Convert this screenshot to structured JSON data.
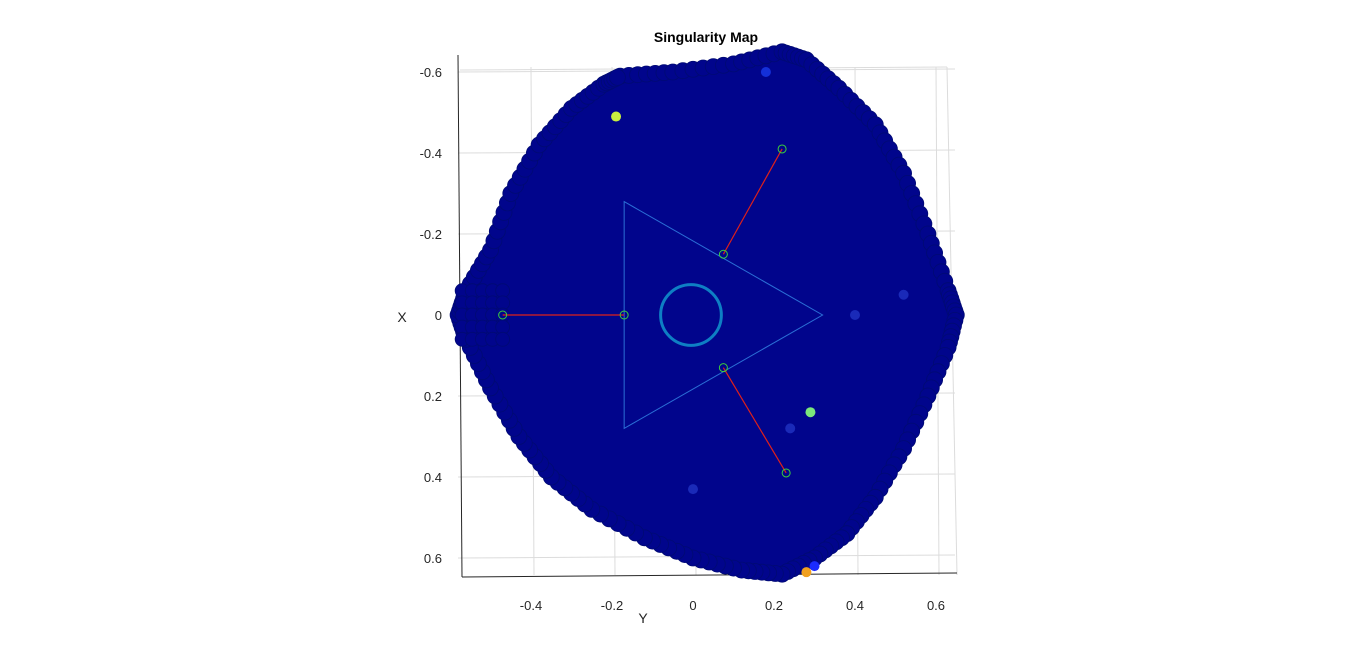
{
  "chart_data": {
    "type": "scatter",
    "title": "Singularity Map",
    "xlabel": "Y",
    "ylabel": "X",
    "xlim": [
      -0.58,
      0.65
    ],
    "ylim": [
      -0.65,
      0.64
    ],
    "y_reversed": true,
    "xticks": [
      -0.4,
      -0.2,
      0,
      0.2,
      0.4,
      0.6
    ],
    "xtick_labels": [
      "-0.4",
      "-0.2",
      "0",
      "0.2",
      "0.4",
      "0.6"
    ],
    "yticks": [
      -0.6,
      -0.4,
      -0.2,
      0,
      0.2,
      0.4,
      0.6
    ],
    "ytick_labels": [
      "-0.6",
      "-0.4",
      "-0.2",
      "0",
      "0.2",
      "0.4",
      "0.6"
    ],
    "grid": true,
    "colors": {
      "workspace_fill": "#01058c",
      "workspace_edge": "#000a73",
      "platform_line": "#2b6fd6",
      "center_circle": "#0e7fc4",
      "leg_line": "#e0201a",
      "joint_marker": "#3ccf3c"
    },
    "workspace_boundary": [
      [
        -0.18,
        -0.59
      ],
      [
        -0.05,
        -0.6
      ],
      [
        0.1,
        -0.62
      ],
      [
        0.22,
        -0.65
      ],
      [
        0.28,
        -0.63
      ],
      [
        0.36,
        -0.56
      ],
      [
        0.45,
        -0.47
      ],
      [
        0.52,
        -0.35
      ],
      [
        0.58,
        -0.2
      ],
      [
        0.63,
        -0.06
      ],
      [
        0.65,
        0.0
      ],
      [
        0.63,
        0.08
      ],
      [
        0.58,
        0.2
      ],
      [
        0.52,
        0.33
      ],
      [
        0.45,
        0.45
      ],
      [
        0.38,
        0.54
      ],
      [
        0.3,
        0.6
      ],
      [
        0.22,
        0.64
      ],
      [
        0.12,
        0.63
      ],
      [
        0.0,
        0.6
      ],
      [
        -0.12,
        0.55
      ],
      [
        -0.25,
        0.48
      ],
      [
        -0.35,
        0.4
      ],
      [
        -0.43,
        0.3
      ],
      [
        -0.5,
        0.18
      ],
      [
        -0.56,
        0.06
      ],
      [
        -0.58,
        0.0
      ],
      [
        -0.56,
        -0.06
      ],
      [
        -0.5,
        -0.16
      ],
      [
        -0.45,
        -0.3
      ],
      [
        -0.38,
        -0.42
      ],
      [
        -0.3,
        -0.51
      ],
      [
        -0.22,
        -0.57
      ]
    ],
    "highlight_points": [
      {
        "x": -0.19,
        "y": -0.49,
        "color": "#c8f040"
      },
      {
        "x": 0.29,
        "y": 0.24,
        "color": "#7be87b"
      },
      {
        "x": 0.3,
        "y": 0.62,
        "color": "#1b2bff"
      },
      {
        "x": 0.28,
        "y": 0.635,
        "color": "#f0a020"
      },
      {
        "x": 0.18,
        "y": -0.6,
        "color": "#1430d8"
      },
      {
        "x": 0.52,
        "y": -0.05,
        "color": "#1a2ab8"
      },
      {
        "x": 0.4,
        "y": 0.0,
        "color": "#1a2ab8"
      },
      {
        "x": 0.0,
        "y": 0.43,
        "color": "#1a2ab8"
      },
      {
        "x": 0.24,
        "y": 0.28,
        "color": "#1a2ab8"
      }
    ],
    "platform_triangle": [
      [
        -0.17,
        -0.28
      ],
      [
        0.32,
        0.0
      ],
      [
        -0.17,
        0.28
      ]
    ],
    "center_circle": {
      "cx": -0.005,
      "cy": 0.0,
      "r": 0.075
    },
    "legs": [
      {
        "base": [
          -0.47,
          0.0
        ],
        "joint": [
          -0.17,
          0.0
        ]
      },
      {
        "base": [
          0.22,
          -0.41
        ],
        "joint": [
          0.075,
          -0.15
        ]
      },
      {
        "base": [
          0.23,
          0.39
        ],
        "joint": [
          0.075,
          0.13
        ]
      }
    ]
  }
}
